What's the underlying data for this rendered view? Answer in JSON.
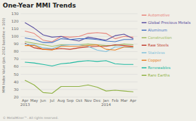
{
  "chart_data": {
    "type": "line",
    "title": "One-Year MMI Trends",
    "y_label": "MMI Index Value (Jan. 2012 baseline = 100)",
    "categories": [
      "Apr\n2013",
      "May",
      "Jun",
      "Jul",
      "Aug",
      "Sep",
      "Oct",
      "Nov",
      "Dec",
      "Jan\n2014",
      "Feb",
      "Mar",
      "Apr"
    ],
    "ylim": [
      20,
      130
    ],
    "yticks": [
      20,
      30,
      40,
      50,
      60,
      70,
      80,
      90,
      100,
      110,
      120,
      130
    ],
    "grid": true,
    "legend": "right",
    "series": [
      {
        "name": "Automotive",
        "color": "#e8837a",
        "values": [
          107,
          104,
          95,
          93,
          100,
          99,
          100,
          104,
          105,
          104,
          97,
          100,
          99
        ]
      },
      {
        "name": "Global Precious Metals",
        "color": "#5a4ea0",
        "values": [
          118,
          111,
          102,
          99,
          100,
          96,
          94,
          99,
          97,
          95,
          101,
          103,
          97
        ]
      },
      {
        "name": "Aluminum",
        "color": "#4472c4",
        "values": [
          98,
          96,
          92,
          92,
          97,
          96,
          97,
          97,
          96,
          94,
          93,
          96,
          96
        ]
      },
      {
        "name": "Construction",
        "color": "#9dbb61",
        "values": [
          93,
          91,
          89,
          87,
          89,
          89,
          89,
          90,
          89,
          88,
          88,
          90,
          89
        ]
      },
      {
        "name": "Raw Steels",
        "color": "#c0392b",
        "values": [
          91,
          85,
          83,
          83,
          84,
          83,
          85,
          86,
          87,
          87,
          89,
          88,
          87
        ]
      },
      {
        "name": "Stainless",
        "color": "#7fbfdb",
        "values": [
          90,
          89,
          85,
          84,
          88,
          89,
          89,
          87,
          82,
          80,
          86,
          86,
          85
        ]
      },
      {
        "name": "Copper",
        "color": "#e67e22",
        "values": [
          88,
          88,
          83,
          82,
          87,
          87,
          87,
          88,
          89,
          83,
          82,
          86,
          86
        ]
      },
      {
        "name": "Renewables",
        "color": "#1ab8a0",
        "values": [
          66,
          65,
          63,
          61,
          64,
          65,
          67,
          68,
          67,
          68,
          64,
          63,
          63
        ]
      },
      {
        "name": "Rare Earths",
        "color": "#8db040",
        "values": [
          42,
          36,
          26,
          25,
          34,
          34,
          34,
          36,
          33,
          28,
          29,
          28,
          27
        ]
      }
    ],
    "annotations": [
      "© MetalMiner™. All rights reserved."
    ]
  }
}
